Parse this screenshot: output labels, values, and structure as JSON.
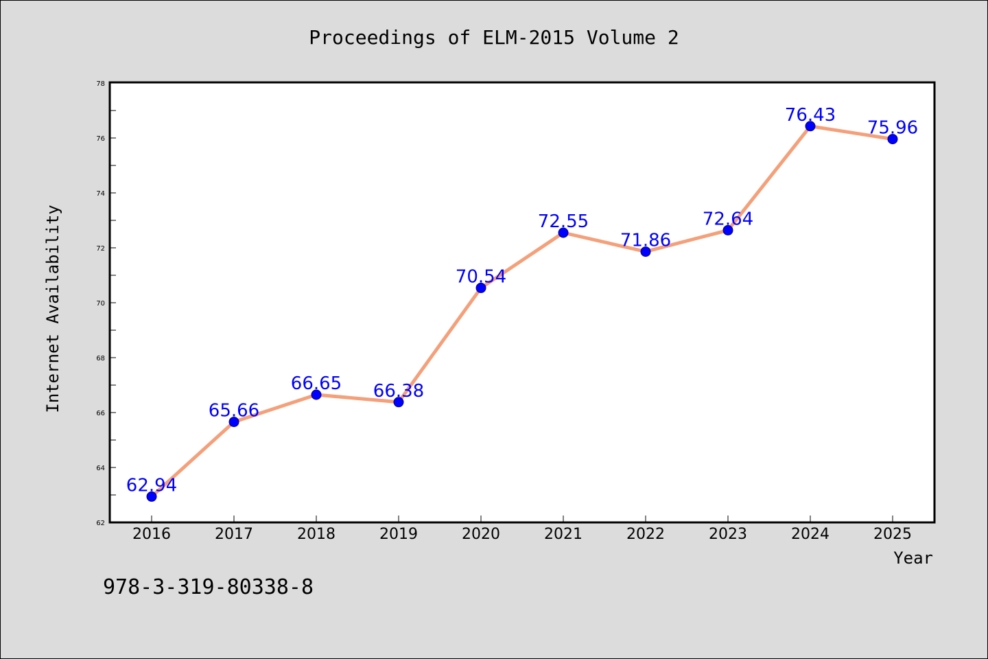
{
  "chart_data": {
    "type": "line",
    "title": "Proceedings of ELM-2015 Volume 2",
    "xlabel": "Year",
    "ylabel": "Internet Availability",
    "categories": [
      "2016",
      "2017",
      "2018",
      "2019",
      "2020",
      "2021",
      "2022",
      "2023",
      "2024",
      "2025"
    ],
    "series": [
      {
        "values": [
          62.94,
          65.66,
          66.65,
          66.38,
          70.54,
          72.55,
          71.86,
          72.64,
          76.43,
          75.96
        ],
        "data_labels": [
          "62.94",
          "65.66",
          "66.65",
          "66.38",
          "70.54",
          "72.55",
          "71.86",
          "72.64",
          "76.43",
          "75.96"
        ],
        "line_color": "#f4a07a",
        "marker_color": "#0000ff"
      }
    ],
    "ylim": [
      62,
      78
    ],
    "yticks": [
      "62",
      "64",
      "66",
      "68",
      "70",
      "72",
      "74",
      "76",
      "78"
    ],
    "grid": false,
    "legend": "none"
  },
  "footer": {
    "isbn": "978-3-319-80338-8"
  },
  "colors": {
    "background": "#dcdcdc",
    "plot_background": "#ffffff",
    "line": "#f4a07a",
    "marker": "#0000ff",
    "data_label": "#0000ff"
  }
}
